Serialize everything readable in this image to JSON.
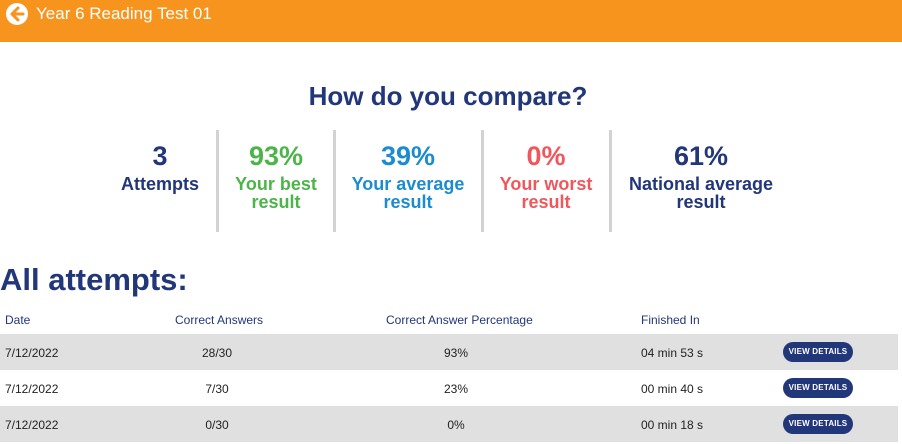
{
  "header": {
    "title": "Year 6 Reading Test 01",
    "back_icon": "arrow-left-icon",
    "background_color": "#f7941d"
  },
  "compare": {
    "title": "How do you compare?",
    "stats": [
      {
        "value": "3",
        "label_line1": "Attempts",
        "label_line2": "",
        "color": "#22367a"
      },
      {
        "value": "93%",
        "label_line1": "Your best",
        "label_line2": "result",
        "color": "#4cb548"
      },
      {
        "value": "39%",
        "label_line1": "Your average",
        "label_line2": "result",
        "color": "#1c8cd0"
      },
      {
        "value": "0%",
        "label_line1": "Your worst",
        "label_line2": "result",
        "color": "#f0575d"
      },
      {
        "value": "61%",
        "label_line1": "National average",
        "label_line2": "result",
        "color": "#22367a"
      }
    ]
  },
  "attempts": {
    "title": "All attempts:",
    "columns": {
      "date": "Date",
      "correct": "Correct Answers",
      "percentage": "Correct Answer Percentage",
      "finished": "Finished In"
    },
    "button_label": "VIEW DETAILS",
    "rows": [
      {
        "date": "7/12/2022",
        "correct": "28/30",
        "percentage": "93%",
        "finished": "04 min 53 s"
      },
      {
        "date": "7/12/2022",
        "correct": "7/30",
        "percentage": "23%",
        "finished": "00 min 40 s"
      },
      {
        "date": "7/12/2022",
        "correct": "0/30",
        "percentage": "0%",
        "finished": "00 min 18 s"
      }
    ]
  }
}
